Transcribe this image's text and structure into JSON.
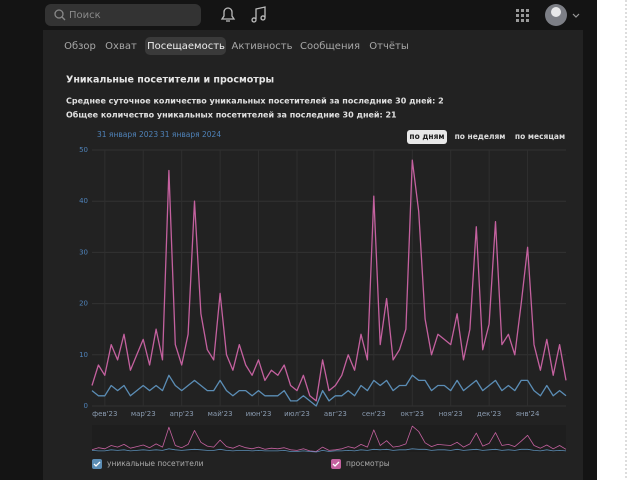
{
  "header": {
    "search_placeholder": "Поиск"
  },
  "tabs": [
    "Обзор",
    "Охват",
    "Посещаемость",
    "Активность",
    "Сообщения",
    "Отчёты"
  ],
  "stats": {
    "title": "Уникальные посетители и просмотры",
    "lines": [
      "Среднее суточное количество уникальных посетителей за последние 30 дней: 2",
      "Общее количество уникальных посетителей за последние 30 дней: 21"
    ],
    "date_from": "31 января 2023",
    "date_to": "31 января 2024",
    "period_buttons": [
      "по дням",
      "по неделям",
      "по месяцам"
    ]
  },
  "chart_data": {
    "type": "line",
    "categories": [
      null,
      null,
      "фев'23",
      null,
      null,
      null,
      null,
      null,
      "мар'23",
      null,
      null,
      null,
      null,
      null,
      "апр'23",
      null,
      null,
      null,
      null,
      null,
      "май'23",
      null,
      null,
      null,
      null,
      null,
      "июн'23",
      null,
      null,
      null,
      null,
      null,
      "июл'23",
      null,
      null,
      null,
      null,
      null,
      "авг'23",
      null,
      null,
      null,
      null,
      null,
      "сен'23",
      null,
      null,
      null,
      null,
      null,
      "окт'23",
      null,
      null,
      null,
      null,
      null,
      "ноя'23",
      null,
      null,
      null,
      null,
      null,
      "дек'23",
      null,
      null,
      null,
      null,
      null,
      "янв'24",
      null,
      null,
      null,
      null,
      null,
      null
    ],
    "series": [
      {
        "name": "просмотры",
        "color": "#c4619f",
        "values": [
          4,
          8,
          6,
          12,
          9,
          14,
          7,
          10,
          13,
          8,
          15,
          9,
          46,
          12,
          8,
          14,
          40,
          18,
          11,
          9,
          22,
          10,
          7,
          12,
          8,
          6,
          9,
          5,
          7,
          6,
          8,
          4,
          3,
          6,
          2,
          1,
          9,
          3,
          4,
          6,
          10,
          7,
          14,
          9,
          41,
          12,
          21,
          9,
          11,
          15,
          48,
          38,
          17,
          10,
          14,
          13,
          12,
          18,
          9,
          15,
          35,
          11,
          16,
          36,
          12,
          14,
          10,
          20,
          31,
          12,
          7,
          13,
          6,
          12,
          5
        ]
      },
      {
        "name": "уникальные посетители",
        "color": "#5b8db5",
        "values": [
          3,
          2,
          2,
          4,
          3,
          4,
          2,
          3,
          4,
          3,
          4,
          3,
          6,
          4,
          3,
          4,
          5,
          4,
          3,
          3,
          5,
          3,
          2,
          3,
          3,
          2,
          3,
          2,
          2,
          2,
          3,
          1,
          1,
          2,
          1,
          0,
          3,
          1,
          2,
          2,
          3,
          2,
          4,
          3,
          5,
          4,
          5,
          3,
          4,
          4,
          6,
          5,
          5,
          3,
          4,
          4,
          3,
          5,
          3,
          4,
          5,
          3,
          4,
          5,
          3,
          4,
          3,
          5,
          5,
          3,
          2,
          4,
          2,
          3,
          2
        ]
      }
    ],
    "ylim": [
      0,
      50
    ],
    "yticks": [
      0,
      10,
      20,
      30,
      40,
      50
    ],
    "grid": true
  }
}
